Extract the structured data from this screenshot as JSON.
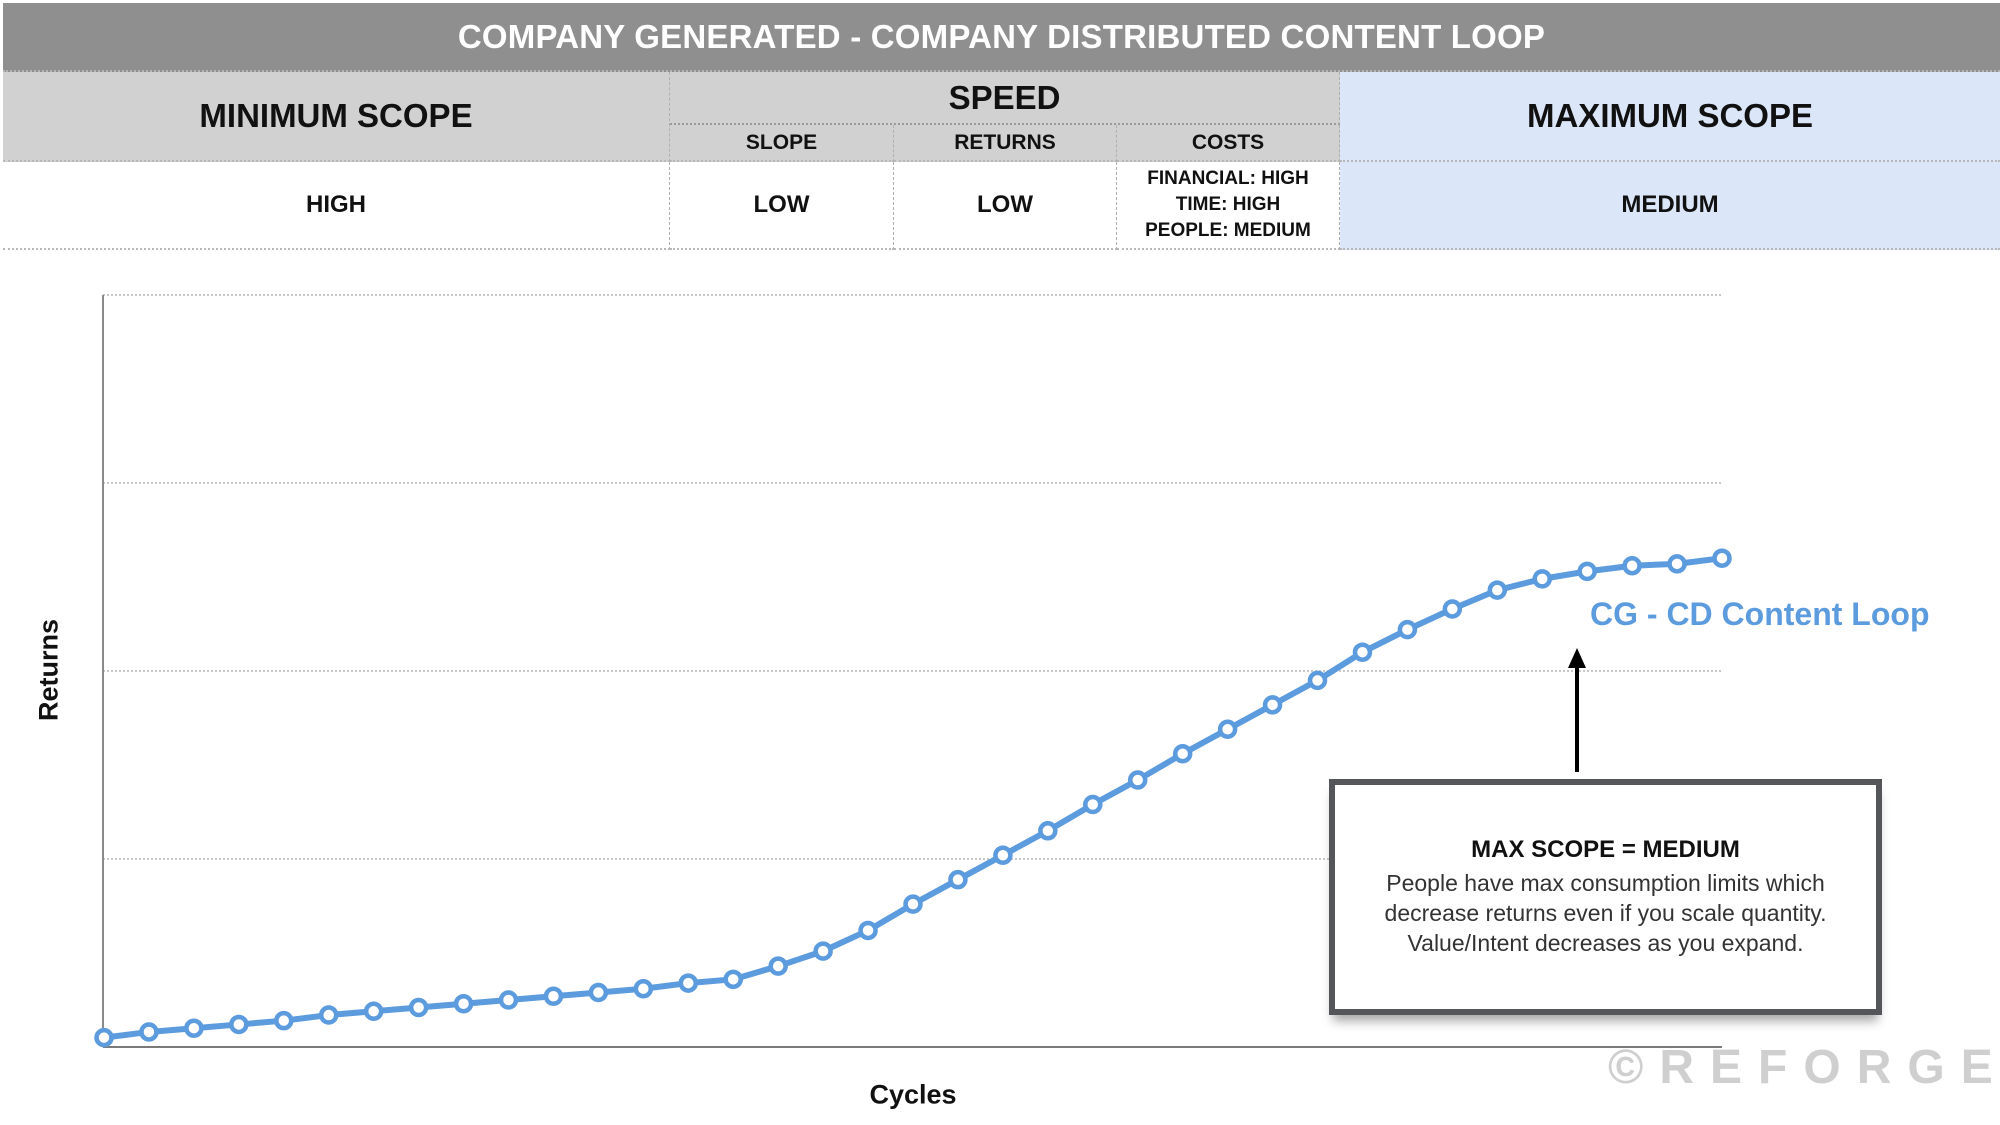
{
  "title": "COMPANY GENERATED - COMPANY DISTRIBUTED  CONTENT LOOP",
  "table": {
    "min_scope": {
      "header": "MINIMUM SCOPE",
      "value": "HIGH"
    },
    "speed": {
      "header": "SPEED",
      "slope": {
        "header": "SLOPE",
        "value": "LOW"
      },
      "returns": {
        "header": "RETURNS",
        "value": "LOW"
      },
      "costs": {
        "header": "COSTS",
        "values": [
          "FINANCIAL: HIGH",
          "TIME: HIGH",
          "PEOPLE: MEDIUM"
        ]
      }
    },
    "max_scope": {
      "header": "MAXIMUM SCOPE",
      "value": "MEDIUM"
    }
  },
  "callout": {
    "title": "MAX SCOPE = MEDIUM",
    "lines": [
      "People have max consumption limits which",
      "decrease returns even if you scale quantity.",
      "Value/Intent decreases as you expand."
    ]
  },
  "watermark": "©REFORGE",
  "colors": {
    "title_bar": "#8f8f8f",
    "header_gray": "#d1d1d1",
    "max_scope_blue": "#dbe7f8",
    "series": "#5b9bde",
    "callout_border": "#55565a"
  },
  "chart_data": {
    "type": "line",
    "title": "",
    "xlabel": "Cycles",
    "ylabel": "Returns",
    "ylim": [
      0,
      4
    ],
    "grid": true,
    "gridlines_y": [
      1,
      2,
      3,
      4
    ],
    "x": [
      1,
      2,
      3,
      4,
      5,
      6,
      7,
      8,
      9,
      10,
      11,
      12,
      13,
      14,
      15,
      16,
      17,
      18,
      19,
      20,
      21,
      22,
      23,
      24,
      25,
      26,
      27,
      28,
      29,
      30,
      31,
      32,
      33,
      34,
      35,
      36,
      37
    ],
    "series": [
      {
        "name": "CG - CD Content Loop",
        "color": "#5b9bde",
        "marker": "hollow-circle",
        "values": [
          0.05,
          0.08,
          0.1,
          0.12,
          0.14,
          0.17,
          0.19,
          0.21,
          0.23,
          0.25,
          0.27,
          0.29,
          0.31,
          0.34,
          0.36,
          0.43,
          0.51,
          0.62,
          0.76,
          0.89,
          1.02,
          1.15,
          1.29,
          1.42,
          1.56,
          1.69,
          1.82,
          1.95,
          2.1,
          2.22,
          2.33,
          2.43,
          2.49,
          2.53,
          2.56,
          2.57,
          2.6
        ]
      }
    ],
    "annotations": [
      {
        "type": "label",
        "text": "CG - CD Content Loop"
      },
      {
        "type": "arrow",
        "direction": "up",
        "target": "CG - CD Content Loop"
      },
      {
        "type": "callout",
        "text": "MAX SCOPE = MEDIUM — People have max consumption limits which decrease returns even if you scale quantity. Value/Intent decreases as you expand."
      }
    ]
  }
}
